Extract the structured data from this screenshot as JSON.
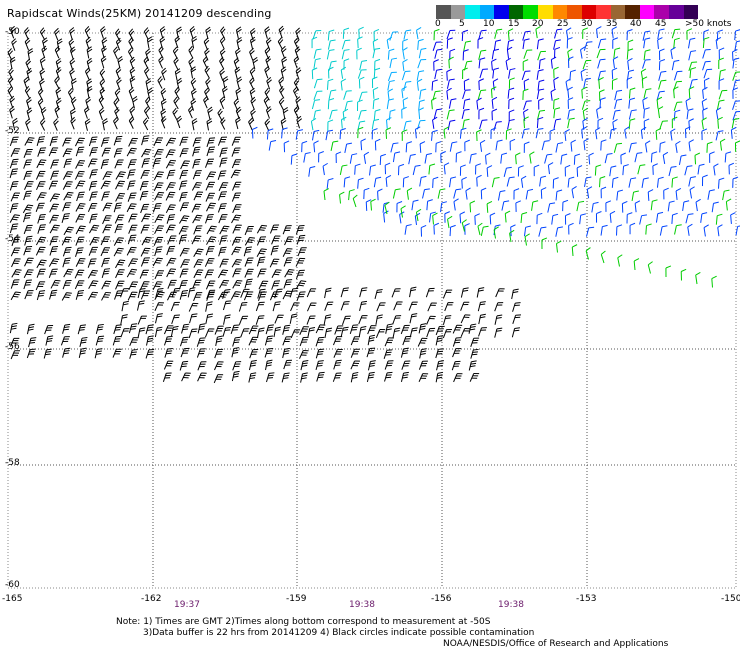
{
  "title": "Rapidscat Winds(25KM) 20141209 descending",
  "colorbar": {
    "colors": [
      "#555555",
      "#9a9a9a",
      "#00eeee",
      "#00aaff",
      "#0000ee",
      "#006600",
      "#00dd00",
      "#ffdd00",
      "#ff8800",
      "#ee5500",
      "#dd0000",
      "#ff3333",
      "#996633",
      "#552200",
      "#ff00ff",
      "#aa00aa",
      "#660099",
      "#330055"
    ],
    "labels": [
      "0",
      "5",
      "10",
      "15",
      "20",
      "25",
      "30",
      "35",
      "40",
      "45",
      ">50 knots"
    ]
  },
  "axes": {
    "lon_labels": [
      "-165",
      "-162",
      "-159",
      "-156",
      "-153",
      "-150"
    ],
    "lat_labels": [
      "-50",
      "-52",
      "-54",
      "-56",
      "-58",
      "-60"
    ],
    "lon_range": [
      -165,
      -150
    ],
    "lat_range": [
      -60,
      -50
    ],
    "grid": "dotted"
  },
  "times": [
    "19:37",
    "19:38",
    "19:38"
  ],
  "notes": [
    "Note: 1) Times are GMT 2)Times along bottom correspond to measurement at -50S",
    "3)Data buffer is 22 hrs from 20141209 4) Black circles indicate possible contamination",
    "NOAA/NESDIS/Office of Research and Applications"
  ]
}
